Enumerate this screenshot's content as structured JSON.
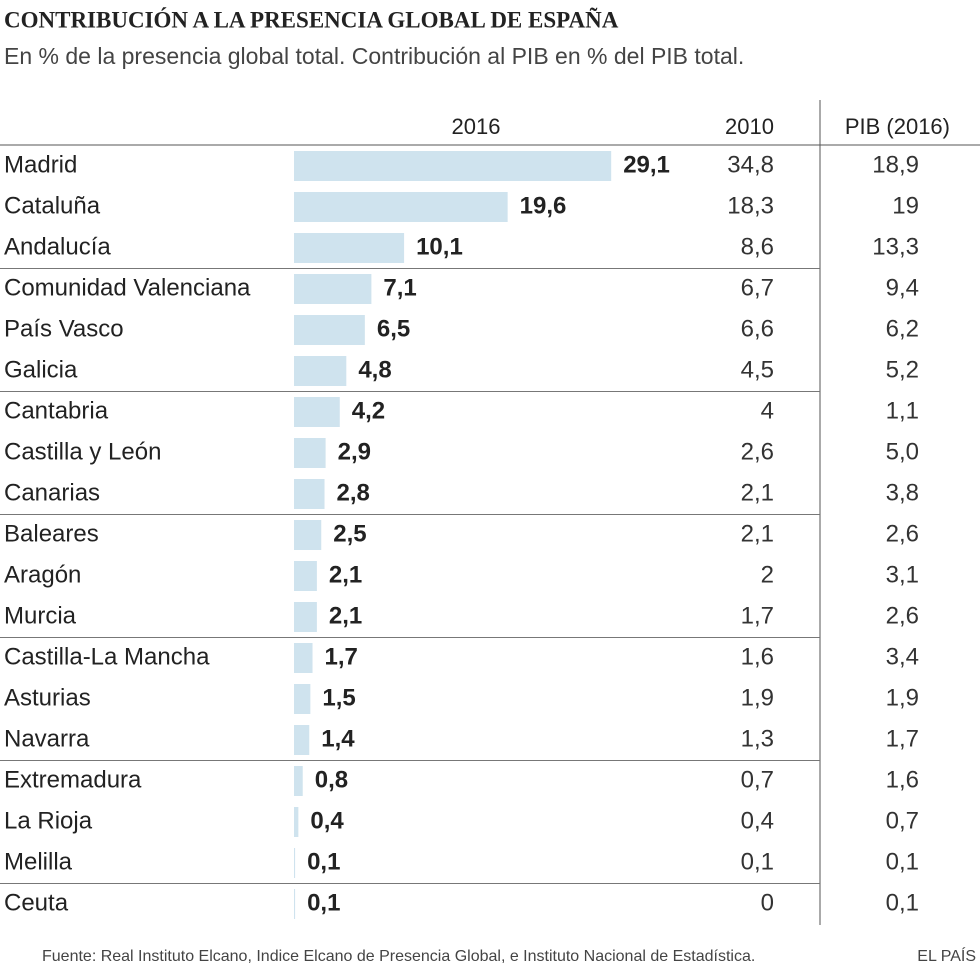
{
  "title": "CONTRIBUCIÓN A LA PRESENCIA GLOBAL DE ESPAÑA",
  "subtitle": "En % de la presencia global total. Contribución al PIB en % del PIB total.",
  "table": {
    "headers": [
      "2016",
      "2010",
      "PIB (2016)"
    ],
    "rows": [
      {
        "name": "Madrid",
        "v2016": 29.1,
        "v2016_label": "29,1",
        "v2010": "34,8",
        "pib": "18,9"
      },
      {
        "name": "Cataluña",
        "v2016": 19.6,
        "v2016_label": "19,6",
        "v2010": "18,3",
        "pib": "19"
      },
      {
        "name": "Andalucía",
        "v2016": 10.1,
        "v2016_label": "10,1",
        "v2010": "8,6",
        "pib": "13,3"
      },
      {
        "name": "Comunidad Valenciana",
        "v2016": 7.1,
        "v2016_label": "7,1",
        "v2010": "6,7",
        "pib": "9,4"
      },
      {
        "name": "País Vasco",
        "v2016": 6.5,
        "v2016_label": "6,5",
        "v2010": "6,6",
        "pib": "6,2"
      },
      {
        "name": "Galicia",
        "v2016": 4.8,
        "v2016_label": "4,8",
        "v2010": "4,5",
        "pib": "5,2"
      },
      {
        "name": "Cantabria",
        "v2016": 4.2,
        "v2016_label": "4,2",
        "v2010": "4",
        "pib": "1,1"
      },
      {
        "name": "Castilla y León",
        "v2016": 2.9,
        "v2016_label": "2,9",
        "v2010": "2,6",
        "pib": "5,0"
      },
      {
        "name": "Canarias",
        "v2016": 2.8,
        "v2016_label": "2,8",
        "v2010": "2,1",
        "pib": "3,8"
      },
      {
        "name": "Baleares",
        "v2016": 2.5,
        "v2016_label": "2,5",
        "v2010": "2,1",
        "pib": "2,6"
      },
      {
        "name": "Aragón",
        "v2016": 2.1,
        "v2016_label": "2,1",
        "v2010": "2",
        "pib": "3,1"
      },
      {
        "name": "Murcia",
        "v2016": 2.1,
        "v2016_label": "2,1",
        "v2010": "1,7",
        "pib": "2,6"
      },
      {
        "name": "Castilla-La Mancha",
        "v2016": 1.7,
        "v2016_label": "1,7",
        "v2010": "1,6",
        "pib": "3,4"
      },
      {
        "name": "Asturias",
        "v2016": 1.5,
        "v2016_label": "1,5",
        "v2010": "1,9",
        "pib": "1,9"
      },
      {
        "name": "Navarra",
        "v2016": 1.4,
        "v2016_label": "1,4",
        "v2010": "1,3",
        "pib": "1,7"
      },
      {
        "name": "Extremadura",
        "v2016": 0.8,
        "v2016_label": "0,8",
        "v2010": "0,7",
        "pib": "1,6"
      },
      {
        "name": "La Rioja",
        "v2016": 0.4,
        "v2016_label": "0,4",
        "v2010": "0,4",
        "pib": "0,7"
      },
      {
        "name": "Melilla",
        "v2016": 0.1,
        "v2016_label": "0,1",
        "v2010": "0,1",
        "pib": "0,1"
      },
      {
        "name": "Ceuta",
        "v2016": 0.1,
        "v2016_label": "0,1",
        "v2010": "0",
        "pib": "0,1"
      }
    ]
  },
  "source": "Fuente: Real Instituto Elcano, Indice Elcano de Presencia Global, e Instituto Nacional de Estadística.",
  "brand": "EL PAÍS"
}
